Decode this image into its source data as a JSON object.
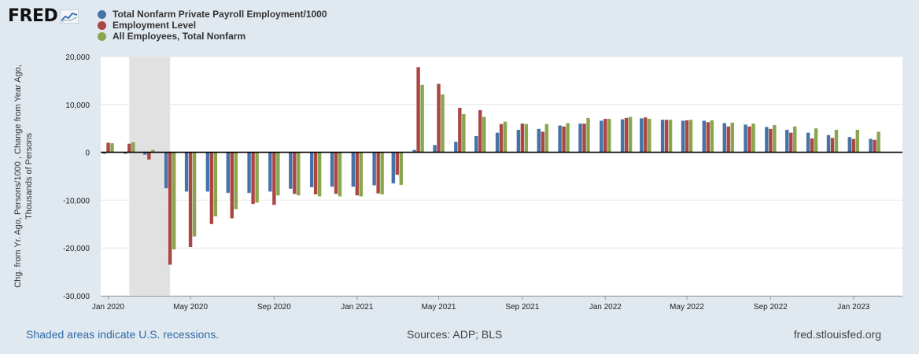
{
  "logo": {
    "text": "FRED"
  },
  "footer": {
    "recession_note": "Shaded areas indicate U.S. recessions.",
    "sources": "Sources: ADP; BLS",
    "site": "fred.stlouisfed.org"
  },
  "colors": {
    "background": "#e1e9f0",
    "plot_bg": "#ffffff",
    "recession": "#e1e1e1"
  },
  "chart_data": {
    "type": "bar",
    "ylabel": [
      "Chg. from Yr. Ago, Persons/1000 , Change from Year Ago,",
      "Thousands of Persons"
    ],
    "ylim": [
      -30000,
      20000
    ],
    "yticks": [
      20000,
      10000,
      0,
      -10000,
      -20000,
      -30000
    ],
    "ytick_labels": [
      "20,000",
      "10,000",
      "0",
      "-10,000",
      "-20,000",
      "-30,000"
    ],
    "xlim": [
      "2019-12-21",
      "2023-03-14"
    ],
    "xticks": [
      "2020-01-01",
      "2020-05-01",
      "2020-09-01",
      "2021-01-01",
      "2021-05-01",
      "2021-09-01",
      "2022-01-01",
      "2022-05-01",
      "2022-09-01",
      "2023-01-01"
    ],
    "xtick_labels": [
      "Jan 2020",
      "May 2020",
      "Sep 2020",
      "Jan 2021",
      "May 2021",
      "Sep 2021",
      "Jan 2022",
      "May 2022",
      "Sep 2022",
      "Jan 2023"
    ],
    "recession": [
      "2020-02-01",
      "2020-04-01"
    ],
    "grid": true,
    "legend_position": "top-left",
    "months": [
      "2020-01",
      "2020-02",
      "2020-03",
      "2020-04",
      "2020-05",
      "2020-06",
      "2020-07",
      "2020-08",
      "2020-09",
      "2020-10",
      "2020-11",
      "2020-12",
      "2021-01",
      "2021-02",
      "2021-03",
      "2021-04",
      "2021-05",
      "2021-06",
      "2021-07",
      "2021-08",
      "2021-09",
      "2021-10",
      "2021-11",
      "2021-12",
      "2022-01",
      "2022-02",
      "2022-03",
      "2022-04",
      "2022-05",
      "2022-06",
      "2022-07",
      "2022-08",
      "2022-09",
      "2022-10",
      "2022-11",
      "2022-12",
      "2023-01",
      "2023-02"
    ],
    "series": [
      {
        "name": "Total Nonfarm Private Payroll Employment/1000",
        "color": "#4572a7",
        "values": [
          -300,
          -300,
          -500,
          -7500,
          -8200,
          -8200,
          -8500,
          -8500,
          -8200,
          -7600,
          -7300,
          -7200,
          -7200,
          -6900,
          -6500,
          500,
          1500,
          2200,
          3400,
          4100,
          4700,
          4900,
          5600,
          6000,
          6600,
          6900,
          7100,
          6800,
          6600,
          6600,
          6100,
          5800,
          5300,
          4700,
          4100,
          3600,
          3200,
          2800
        ]
      },
      {
        "name": "Employment Level",
        "color": "#aa4643",
        "values": [
          2000,
          1800,
          -1500,
          -23500,
          -19800,
          -15000,
          -13800,
          -10800,
          -11000,
          -8700,
          -8800,
          -8700,
          -9000,
          -8600,
          -4700,
          17800,
          14300,
          9300,
          8800,
          5900,
          6000,
          4300,
          5400,
          6000,
          7000,
          7200,
          7300,
          6800,
          6700,
          6300,
          5400,
          5400,
          4900,
          4100,
          2900,
          3000,
          2800,
          2600
        ]
      },
      {
        "name": "All Employees, Total Nonfarm",
        "color": "#89a54e",
        "values": [
          1900,
          2100,
          500,
          -20300,
          -17600,
          -13400,
          -11900,
          -10500,
          -9000,
          -9000,
          -9200,
          -9200,
          -9200,
          -8800,
          -6800,
          14100,
          12100,
          8000,
          7400,
          6400,
          5900,
          5900,
          6100,
          7200,
          7000,
          7400,
          7000,
          6800,
          6800,
          6700,
          6200,
          6000,
          5700,
          5400,
          5000,
          4700,
          4700,
          4300
        ]
      }
    ]
  }
}
